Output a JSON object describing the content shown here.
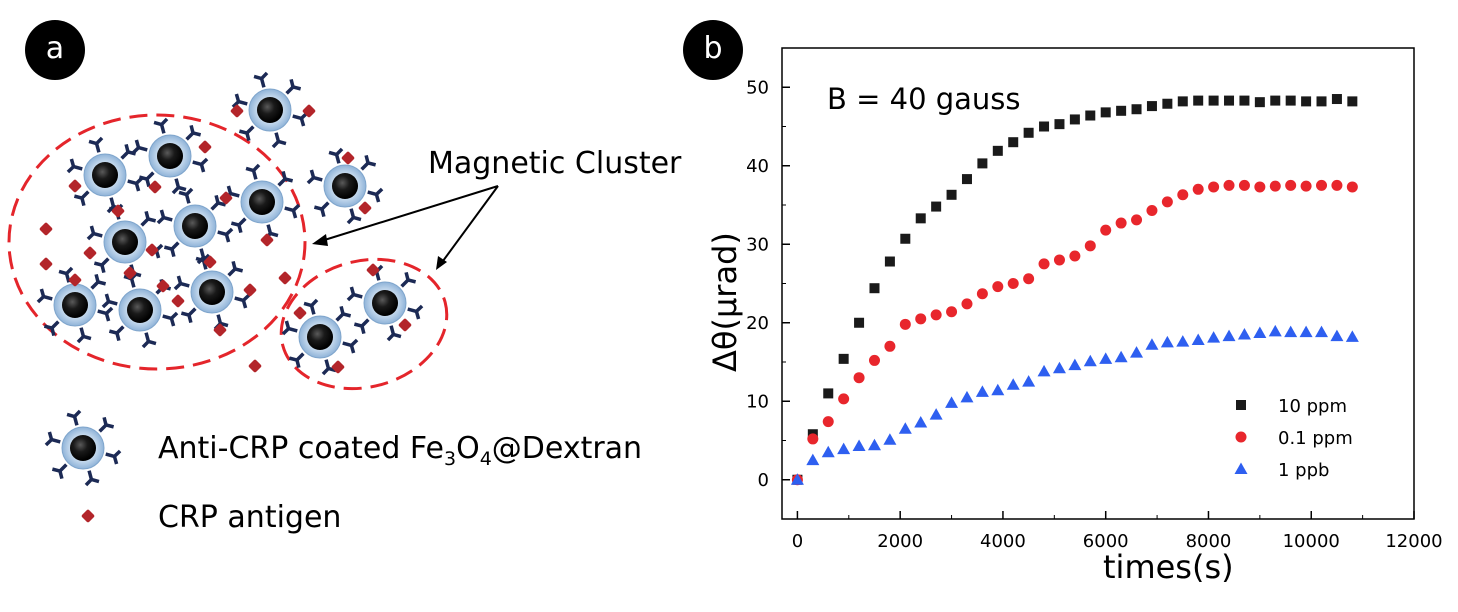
{
  "panels": {
    "a": {
      "badge": "a",
      "callout": "Magnetic Cluster",
      "legend": {
        "particle": {
          "prefix": "Anti-CRP coated Fe",
          "sub1": "3",
          "mid": "O",
          "sub2": "4",
          "suffix": "@Dextran"
        },
        "antigen": "CRP antigen"
      }
    },
    "b": {
      "badge": "b",
      "annotation": "B = 40 gauss"
    }
  },
  "colors": {
    "cluster_outline": "#e4252b",
    "antigen": "#b3252a",
    "particle_core": "#111111",
    "particle_shell": "#a9c6e3",
    "antibody": "#1c2a55",
    "series_10ppm": "#1a1a1a",
    "series_01ppm": "#e8262c",
    "series_1ppb": "#2e5ff0"
  },
  "chart_data": {
    "type": "scatter",
    "xlabel": "times(s)",
    "ylabel": "Δθ(μrad)",
    "xlim": [
      -300,
      12000
    ],
    "ylim": [
      -5,
      55
    ],
    "xticks": [
      0,
      2000,
      4000,
      6000,
      8000,
      10000,
      12000
    ],
    "yticks": [
      0,
      10,
      20,
      30,
      40,
      50
    ],
    "grid": false,
    "legend_position": "bottom-right",
    "series": [
      {
        "name": "10 ppm",
        "marker": "square",
        "x": [
          0,
          300,
          600,
          900,
          1200,
          1500,
          1800,
          2100,
          2400,
          2700,
          3000,
          3300,
          3600,
          3900,
          4200,
          4500,
          4800,
          5100,
          5400,
          5700,
          6000,
          6300,
          6600,
          6900,
          7200,
          7500,
          7800,
          8100,
          8400,
          8700,
          9000,
          9300,
          9600,
          9900,
          10200,
          10500,
          10800
        ],
        "y": [
          0,
          5.8,
          11,
          15.4,
          20,
          24.4,
          27.8,
          30.7,
          33.3,
          34.8,
          36.3,
          38.3,
          40.3,
          41.9,
          43,
          44.2,
          45,
          45.3,
          45.9,
          46.4,
          46.8,
          47,
          47.2,
          47.6,
          47.9,
          48.2,
          48.3,
          48.3,
          48.3,
          48.3,
          48.1,
          48.3,
          48.3,
          48.2,
          48.2,
          48.5,
          48.2
        ]
      },
      {
        "name": "0.1 ppm",
        "marker": "circle",
        "x": [
          0,
          300,
          600,
          900,
          1200,
          1500,
          1800,
          2100,
          2400,
          2700,
          3000,
          3300,
          3600,
          3900,
          4200,
          4500,
          4800,
          5100,
          5400,
          5700,
          6000,
          6300,
          6600,
          6900,
          7200,
          7500,
          7800,
          8100,
          8400,
          8700,
          9000,
          9300,
          9600,
          9900,
          10200,
          10500,
          10800
        ],
        "y": [
          0,
          5.2,
          7.4,
          10.3,
          13,
          15.2,
          17,
          19.8,
          20.5,
          21,
          21.4,
          22.4,
          23.7,
          24.6,
          25,
          25.6,
          27.5,
          28,
          28.5,
          29.8,
          31.8,
          32.7,
          33.1,
          34.3,
          35.4,
          36.3,
          37,
          37.3,
          37.5,
          37.5,
          37.3,
          37.4,
          37.5,
          37.4,
          37.5,
          37.5,
          37.3
        ]
      },
      {
        "name": "1 ppb",
        "marker": "triangle",
        "x": [
          0,
          300,
          600,
          900,
          1200,
          1500,
          1800,
          2100,
          2400,
          2700,
          3000,
          3300,
          3600,
          3900,
          4200,
          4500,
          4800,
          5100,
          5400,
          5700,
          6000,
          6300,
          6600,
          6900,
          7200,
          7500,
          7800,
          8100,
          8400,
          8700,
          9000,
          9300,
          9600,
          9900,
          10200,
          10500,
          10800
        ],
        "y": [
          0,
          2.5,
          3.5,
          3.9,
          4.3,
          4.4,
          5.1,
          6.5,
          7.3,
          8.3,
          9.8,
          10.5,
          11.2,
          11.4,
          12.1,
          12.5,
          13.8,
          14.2,
          14.6,
          15.1,
          15.4,
          15.6,
          16.2,
          17.2,
          17.5,
          17.6,
          17.8,
          18.1,
          18.3,
          18.5,
          18.7,
          18.9,
          18.8,
          18.8,
          18.8,
          18.3,
          18.2
        ]
      }
    ]
  }
}
